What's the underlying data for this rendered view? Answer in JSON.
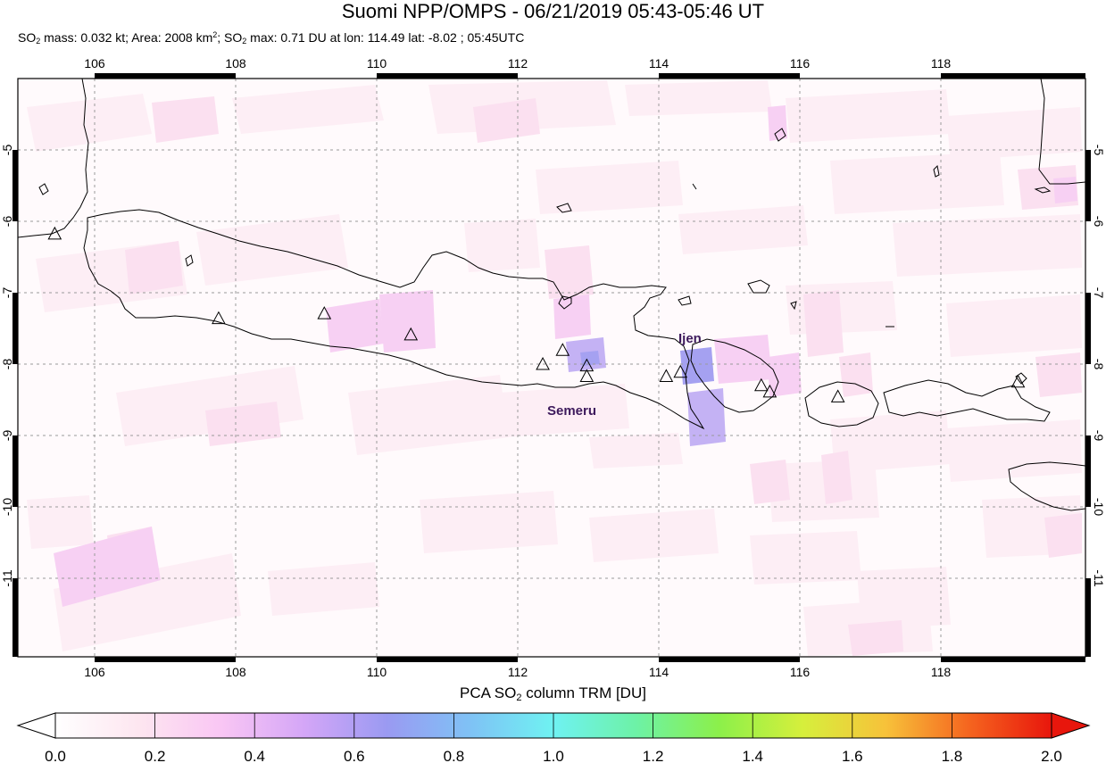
{
  "header": {
    "title": "Suomi NPP/OMPS - 06/21/2019 05:43-05:46 UT",
    "subtitle": {
      "mass_label": "SO",
      "mass_sub": "2",
      "mass_text": " mass: 0.032 kt; Area: 2008 km",
      "area_sup": "2",
      "sep_text": "; SO",
      "max_sub": "2",
      "max_text": " max: 0.71 DU at lon: 114.49 lat: -8.02 ; 05:45UTC"
    }
  },
  "map": {
    "lon_ticks": [
      "106",
      "108",
      "110",
      "112",
      "114",
      "116",
      "118"
    ],
    "lat_ticks": [
      "-5",
      "-6",
      "-7",
      "-8",
      "-9",
      "-10",
      "-11"
    ],
    "lon_range": [
      104.9,
      119.95
    ],
    "lat_range": [
      -12.1,
      -3.9
    ],
    "volcano_labels": [
      {
        "name": "Ijen",
        "lon": 114.3,
        "lat": -7.7
      },
      {
        "name": "Semeru",
        "lon": 112.5,
        "lat": -8.85
      }
    ],
    "volcanoes": [
      {
        "lon": 105.42,
        "lat": -6.1
      },
      {
        "lon": 107.73,
        "lat": -7.3
      },
      {
        "lon": 109.22,
        "lat": -7.23
      },
      {
        "lon": 110.44,
        "lat": -7.53
      },
      {
        "lon": 112.3,
        "lat": -7.95
      },
      {
        "lon": 112.58,
        "lat": -7.75
      },
      {
        "lon": 112.92,
        "lat": -7.97
      },
      {
        "lon": 112.92,
        "lat": -8.12
      },
      {
        "lon": 114.04,
        "lat": -8.12
      },
      {
        "lon": 114.24,
        "lat": -8.06
      },
      {
        "lon": 115.38,
        "lat": -8.25
      },
      {
        "lon": 115.5,
        "lat": -8.34
      },
      {
        "lon": 116.46,
        "lat": -8.41
      },
      {
        "lon": 119.0,
        "lat": -8.2
      }
    ]
  },
  "colorbar": {
    "title_prefix": "PCA SO",
    "title_sub": "2",
    "title_suffix": " column TRM [DU]",
    "min": 0.0,
    "max": 2.0,
    "tick_labels": [
      "0.0",
      "0.2",
      "0.4",
      "0.6",
      "0.8",
      "1.0",
      "1.2",
      "1.4",
      "1.6",
      "1.8",
      "2.0"
    ],
    "stops": [
      "#ffffff",
      "#fde6f0",
      "#f9c6f4",
      "#d4a6f7",
      "#9a9af2",
      "#7fc2f5",
      "#6ff2f2",
      "#6df2a6",
      "#8cf04a",
      "#d6ef3c",
      "#f7c23a",
      "#f5651f",
      "#e8160c"
    ]
  }
}
